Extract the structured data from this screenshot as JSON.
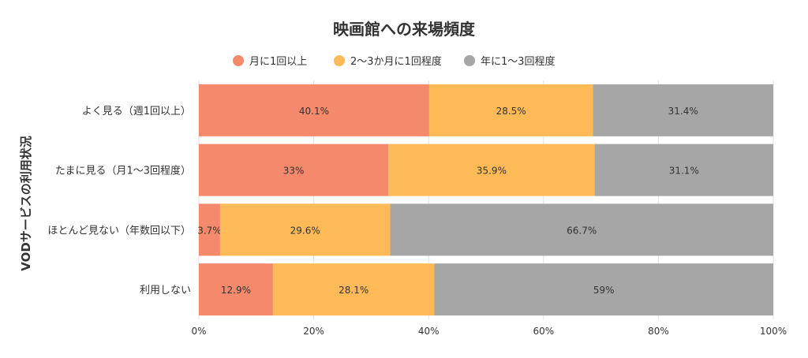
{
  "chart_data": {
    "type": "bar",
    "orientation": "horizontal",
    "stacked": true,
    "normalized": true,
    "title": "映画館への来場頻度",
    "ylabel": "VODサービスの利用状況",
    "xlabel": "",
    "categories": [
      "よく見る（週1回以上）",
      "たまに見る（月1〜3回程度）",
      "ほとんど見ない（年数回以下）",
      "利用しない"
    ],
    "series": [
      {
        "name": "月に1回以上",
        "color": "#F4896B",
        "values": [
          40.1,
          33,
          3.7,
          12.9
        ],
        "labels": [
          "40.1%",
          "33%",
          "3.7%",
          "12.9%"
        ]
      },
      {
        "name": "2〜3か月に1回程度",
        "color": "#FDBA57",
        "values": [
          28.5,
          35.9,
          29.6,
          28.1
        ],
        "labels": [
          "28.5%",
          "35.9%",
          "29.6%",
          "28.1%"
        ]
      },
      {
        "name": "年に1〜3回程度",
        "color": "#A6A6A6",
        "values": [
          31.4,
          31.1,
          66.7,
          59
        ],
        "labels": [
          "31.4%",
          "31.1%",
          "66.7%",
          "59%"
        ]
      }
    ],
    "xlim": [
      0,
      100
    ],
    "x_ticks": [
      "0%",
      "20%",
      "40%",
      "60%",
      "80%",
      "100%"
    ],
    "grid": true,
    "legend_position": "top-center"
  }
}
